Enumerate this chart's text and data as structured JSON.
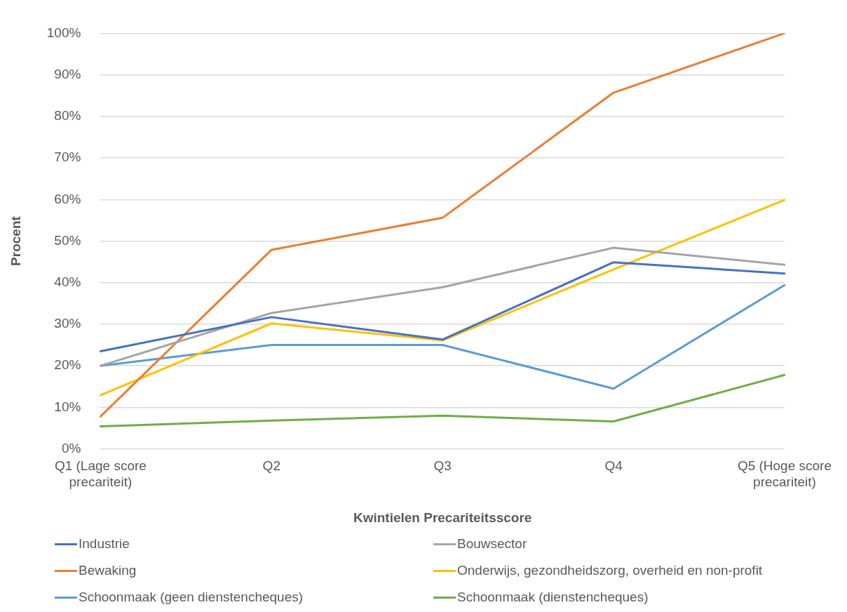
{
  "chart_data": {
    "type": "line",
    "xlabel": "Kwintielen Precariteitsscore",
    "ylabel": "Procent",
    "categories": [
      "Q1 (Lage score precariteit)",
      "Q2",
      "Q3",
      "Q4",
      "Q5 (Hoge score precariteit)"
    ],
    "series": [
      {
        "name": "Industrie",
        "color": "#4472c4",
        "values": [
          23.5,
          31.7,
          26.3,
          44.9,
          42.2
        ]
      },
      {
        "name": "Bouwsector",
        "color": "#a5a5a5",
        "values": [
          20.0,
          32.7,
          38.9,
          48.4,
          44.3
        ]
      },
      {
        "name": "Bewaking",
        "color": "#ed7d31",
        "values": [
          7.8,
          47.9,
          55.6,
          85.7,
          100
        ]
      },
      {
        "name": "Onderwijs, gezondheidszorg, overheid en non-profit",
        "color": "#ffc000",
        "values": [
          12.9,
          30.2,
          26.1,
          43.2,
          59.9
        ]
      },
      {
        "name": "Schoonmaak (geen dienstencheques)",
        "color": "#5b9bd5",
        "values": [
          20.0,
          25.0,
          25.0,
          14.5,
          39.4
        ]
      },
      {
        "name": "Schoonmaak (dienstencheques)",
        "color": "#70ad47",
        "values": [
          5.4,
          6.8,
          8.0,
          6.6,
          17.8
        ]
      }
    ],
    "ylim": [
      0,
      100
    ],
    "yticks": [
      {
        "value": 0,
        "label": "0%"
      },
      {
        "value": 10,
        "label": "10%"
      },
      {
        "value": 20,
        "label": "20%"
      },
      {
        "value": 30,
        "label": "30%"
      },
      {
        "value": 40,
        "label": "40%"
      },
      {
        "value": 50,
        "label": "50%"
      },
      {
        "value": 60,
        "label": "60%"
      },
      {
        "value": 70,
        "label": "70%"
      },
      {
        "value": 80,
        "label": "80%"
      },
      {
        "value": 90,
        "label": "90%"
      },
      {
        "value": 100,
        "label": "100%"
      }
    ],
    "grid": "y",
    "legend": "bottom",
    "marker": "none",
    "line_style": "solid"
  }
}
